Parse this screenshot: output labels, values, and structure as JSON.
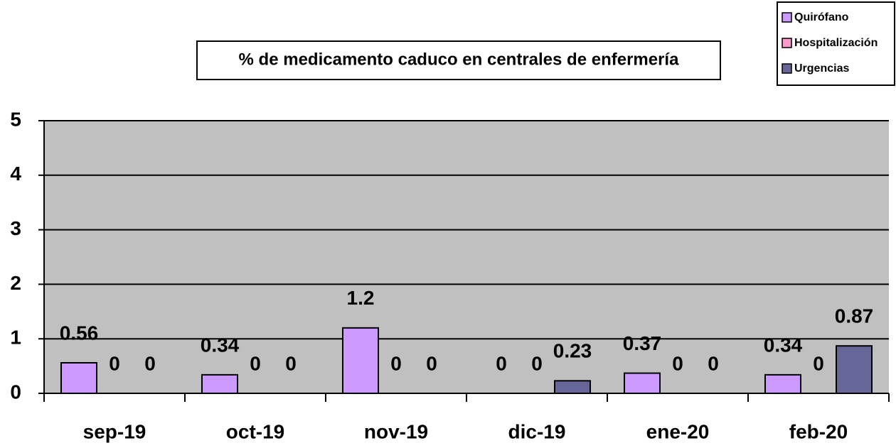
{
  "chart_data": {
    "type": "bar",
    "title": "% de medicamento caduco en centrales de enfermería",
    "categories": [
      "sep-19",
      "oct-19",
      "nov-19",
      "dic-19",
      "ene-20",
      "feb-20"
    ],
    "series": [
      {
        "name": "Quirófano",
        "color": "#cc99ff",
        "values": [
          0.56,
          0.34,
          1.2,
          0,
          0.37,
          0.34
        ]
      },
      {
        "name": "Hospitalización",
        "color": "#ff99cc",
        "values": [
          0,
          0,
          0,
          0,
          0,
          0
        ]
      },
      {
        "name": "Urgencias",
        "color": "#666699",
        "values": [
          0,
          0,
          0,
          0.23,
          0,
          0.87
        ]
      }
    ],
    "ylim": [
      0,
      5
    ],
    "yticks": [
      0,
      1,
      2,
      3,
      4,
      5
    ],
    "grid": true,
    "legend": "top-right"
  }
}
